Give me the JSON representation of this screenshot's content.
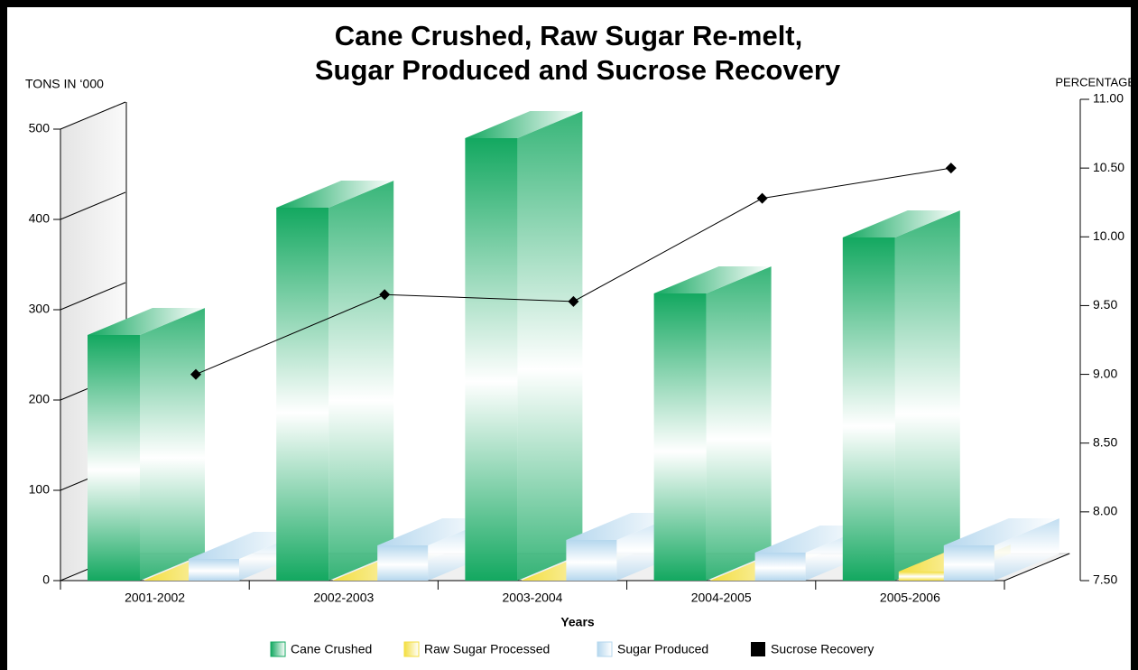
{
  "chart_data": {
    "type": "bar3d",
    "title": [
      "Cane Crushed, Raw Sugar Re-melt,",
      "Sugar Produced and Sucrose Recovery"
    ],
    "ylabel": "TONS IN ‘000",
    "y2label": "PERCENTAGE",
    "xlabel": "Years",
    "categories": [
      "2001-2002",
      "2002-2003",
      "2003-2004",
      "2004-2005",
      "2005-2006"
    ],
    "series": [
      {
        "name": "Cane Crushed",
        "color": "#13a860",
        "values": [
          272,
          413,
          490,
          318,
          380
        ]
      },
      {
        "name": "Raw Sugar Processed",
        "color": "#f3de3f",
        "values": [
          0,
          0,
          0,
          0,
          10
        ]
      },
      {
        "name": "Sugar Produced",
        "color": "#b5d7ee",
        "values": [
          24,
          39,
          45,
          31,
          39
        ]
      },
      {
        "name": "Sucrose Recovery",
        "color": "#000000",
        "axis": "y2",
        "values": [
          9.0,
          9.58,
          9.53,
          10.28,
          10.5
        ]
      }
    ],
    "ylim": [
      0,
      500
    ],
    "yticks": [
      0,
      100,
      200,
      300,
      400,
      500
    ],
    "y2lim": [
      7.5,
      11.0
    ],
    "y2ticks": [
      {
        "value": 7.5,
        "label": "7.50"
      },
      {
        "value": 8.0,
        "label": "8.00"
      },
      {
        "value": 8.5,
        "label": "8.50"
      },
      {
        "value": 9.0,
        "label": "9.00"
      },
      {
        "value": 9.5,
        "label": "9.50"
      },
      {
        "value": 10.0,
        "label": "10.00"
      },
      {
        "value": 10.5,
        "label": "10.50"
      },
      {
        "value": 11.0,
        "label": "11.00"
      }
    ]
  }
}
